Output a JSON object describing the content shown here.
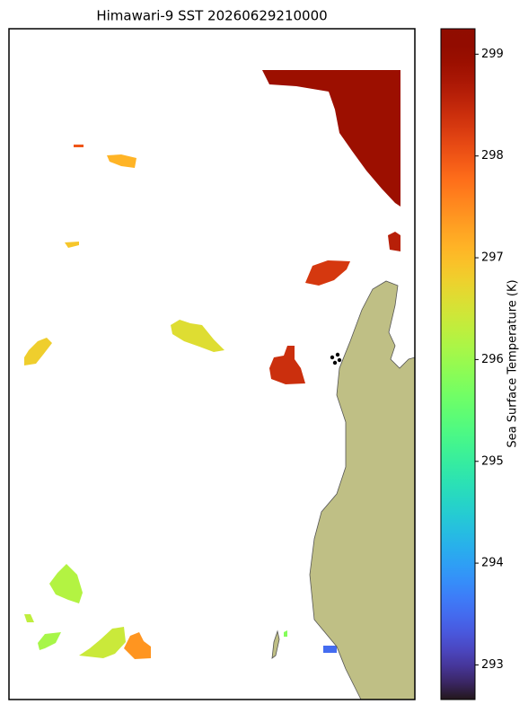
{
  "chart_data": {
    "type": "map",
    "title": "Himawari-9 SST 20260629210000",
    "colorbar_label": "Sea Surface Temperature (K)",
    "colormap": "turbo",
    "land_color": "#bfbf85",
    "clim": [
      292.66,
      299.25
    ],
    "cticks": [
      293,
      294,
      295,
      296,
      297,
      298,
      299
    ],
    "values": [
      298.9,
      298.3,
      298.4,
      298.6,
      297.1,
      296.8,
      296.6,
      296.9,
      298.0,
      296.2,
      296.3,
      296.1,
      296.4,
      297.4,
      293.5,
      295.8
    ]
  }
}
